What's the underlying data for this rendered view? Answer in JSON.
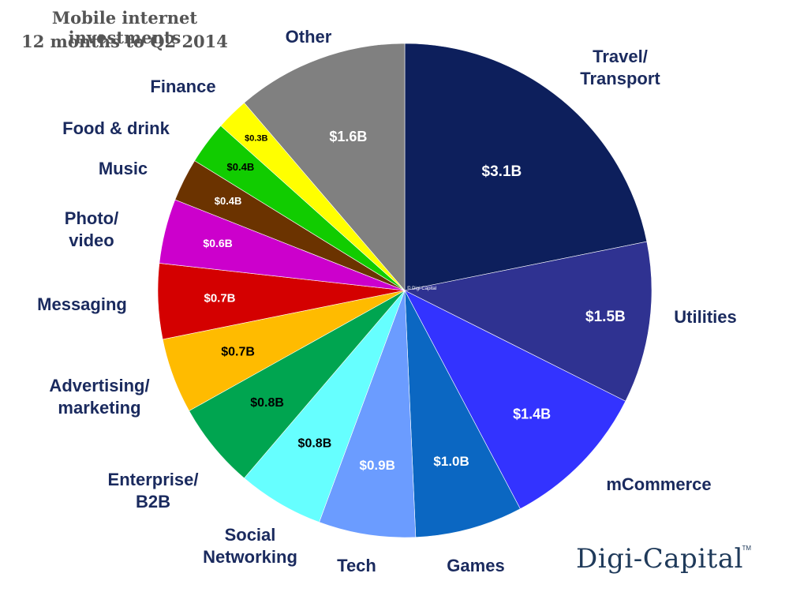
{
  "title": {
    "line1": "Mobile internet investments",
    "line2": "12 months to Q2 2014"
  },
  "copyright": "© Digi-Capital",
  "logo": "Digi-Capital",
  "trademark": "TM",
  "chart_data": {
    "type": "pie",
    "title": "Mobile internet investments 12 months to Q2 2014",
    "unit": "$B",
    "start": "12 o'clock",
    "direction": "clockwise",
    "slices": [
      {
        "category": "Travel/\nTransport",
        "value": 3.1,
        "label": "$3.1B",
        "color": "#0d1f5c",
        "label_color": "#ffffff"
      },
      {
        "category": "Utilities",
        "value": 1.5,
        "label": "$1.5B",
        "color": "#2f3291",
        "label_color": "#ffffff"
      },
      {
        "category": "mCommerce",
        "value": 1.4,
        "label": "$1.4B",
        "color": "#3333ff",
        "label_color": "#ffffff"
      },
      {
        "category": "Games",
        "value": 1.0,
        "label": "$1.0B",
        "color": "#0b67c2",
        "label_color": "#ffffff"
      },
      {
        "category": "Tech",
        "value": 0.9,
        "label": "$0.9B",
        "color": "#6b9cff",
        "label_color": "#ffffff"
      },
      {
        "category": "Social\nNetworking",
        "value": 0.8,
        "label": "$0.8B",
        "color": "#66ffff",
        "label_color": "#000000"
      },
      {
        "category": "Enterprise/\nB2B",
        "value": 0.8,
        "label": "$0.8B",
        "color": "#00a550",
        "label_color": "#000000"
      },
      {
        "category": "Advertising/\nmarketing",
        "value": 0.7,
        "label": "$0.7B",
        "color": "#ffbb00",
        "label_color": "#000000"
      },
      {
        "category": "Messaging",
        "value": 0.7,
        "label": "$0.7B",
        "color": "#d40000",
        "label_color": "#ffffff"
      },
      {
        "category": "Photo/\nvideo",
        "value": 0.6,
        "label": "$0.6B",
        "color": "#cc00cc",
        "label_color": "#ffffff"
      },
      {
        "category": "Music",
        "value": 0.4,
        "label": "$0.4B",
        "color": "#6b3300",
        "label_color": "#ffffff"
      },
      {
        "category": "Food & drink",
        "value": 0.4,
        "label": "$0.4B",
        "color": "#11cc00",
        "label_color": "#000000"
      },
      {
        "category": "Finance",
        "value": 0.3,
        "label": "$0.3B",
        "color": "#ffff00",
        "label_color": "#000000"
      },
      {
        "category": "Other",
        "value": 1.6,
        "label": "$1.6B",
        "color": "#808080",
        "label_color": "#ffffff"
      }
    ]
  }
}
